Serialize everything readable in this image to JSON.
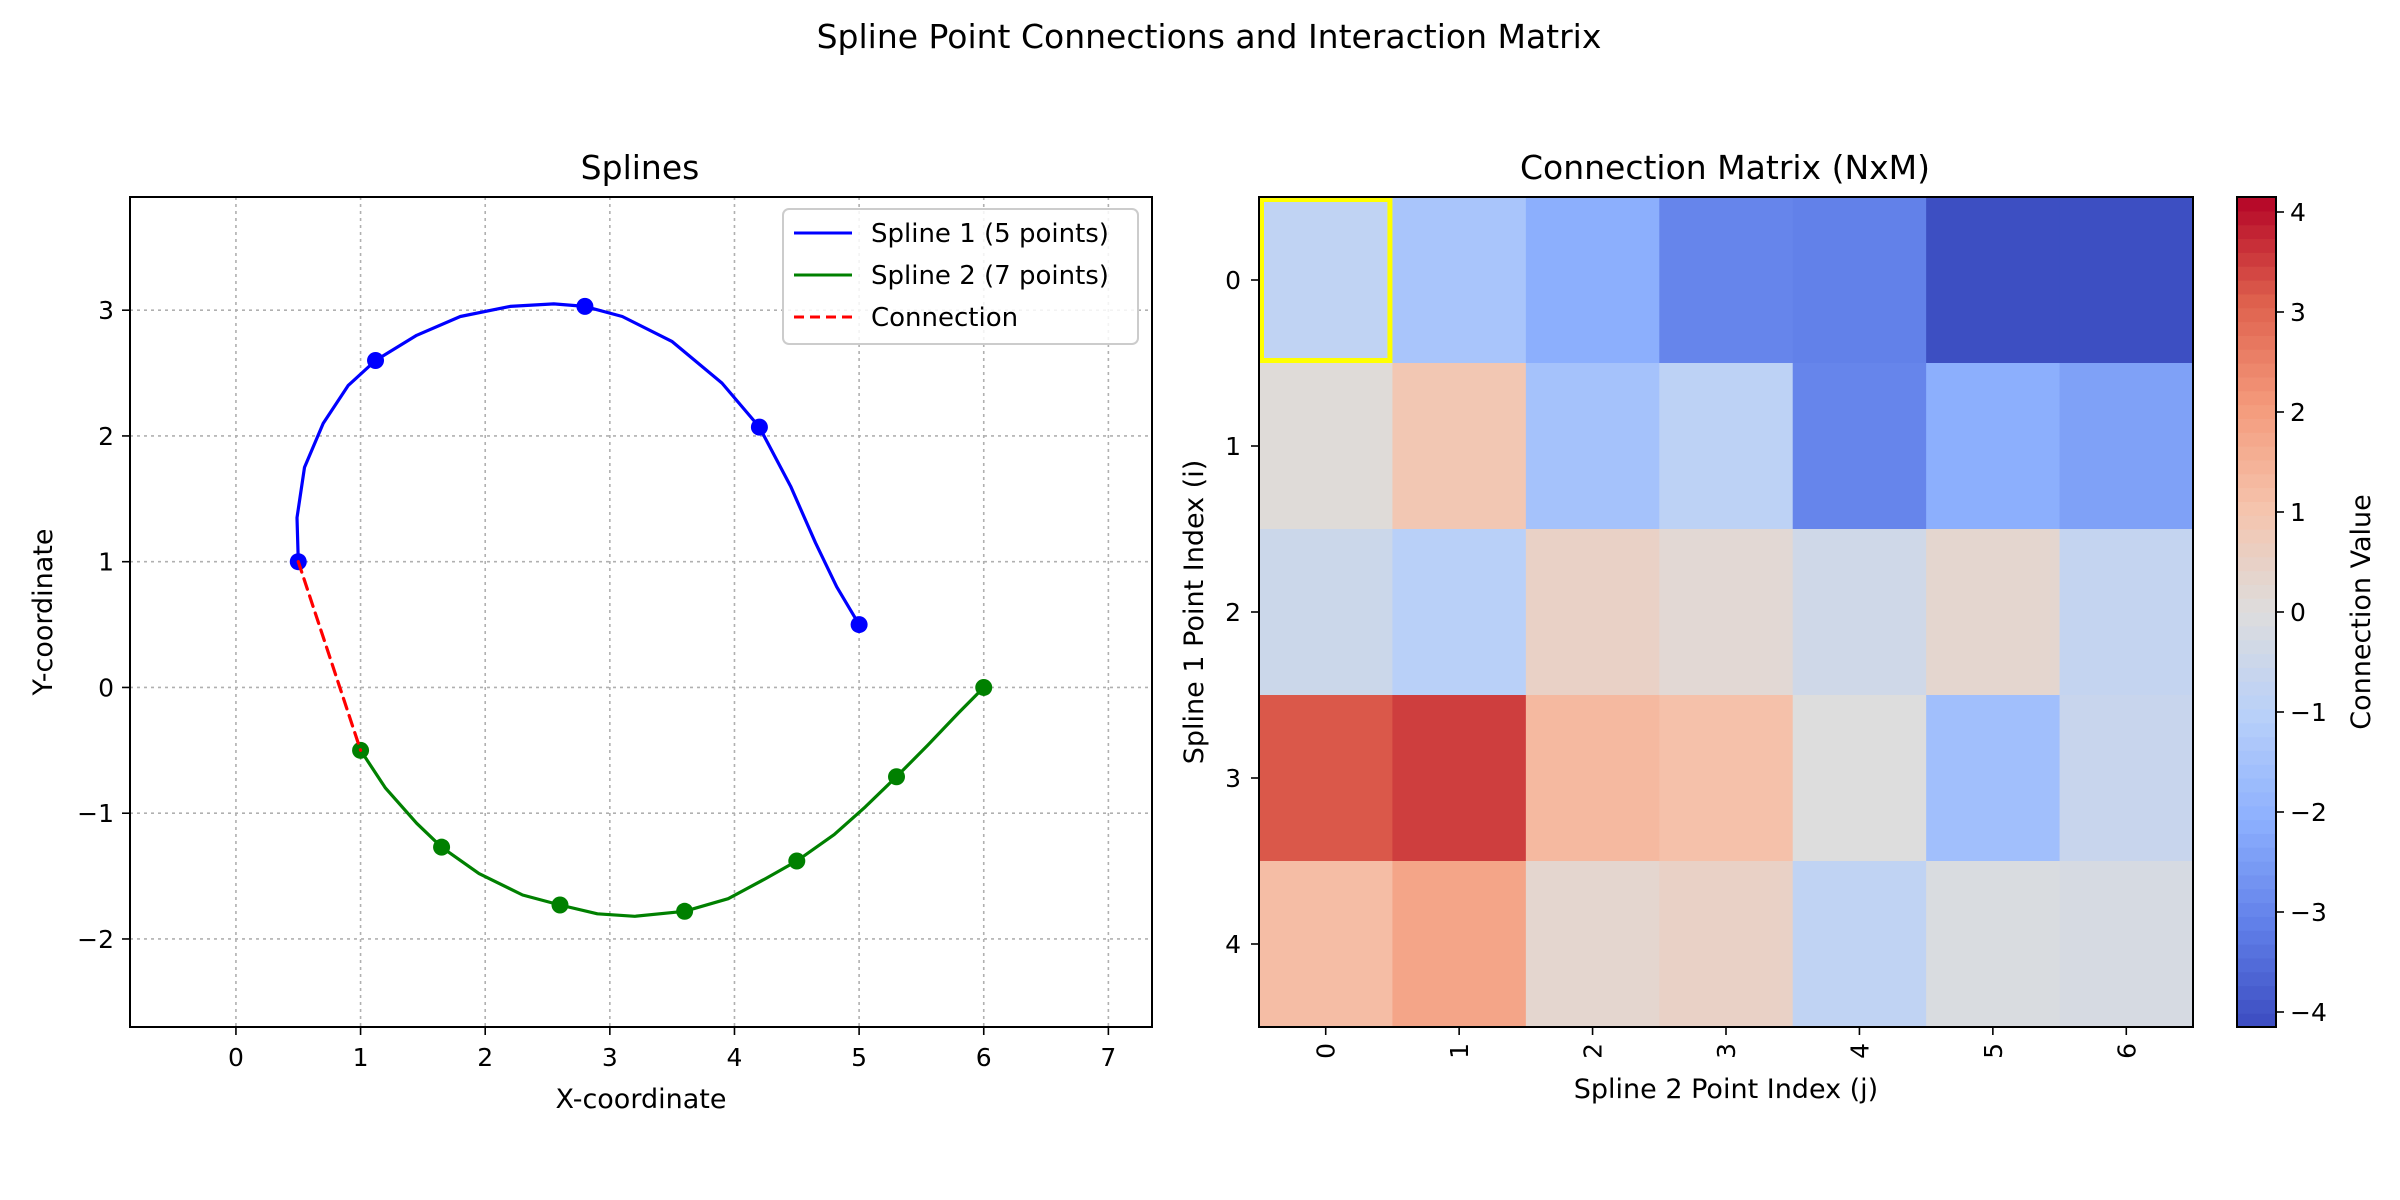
{
  "figure": {
    "title": "Spline Point Connections and Interaction Matrix"
  },
  "chart_data": [
    {
      "type": "line",
      "title": "Splines",
      "xlabel": "X-coordinate",
      "ylabel": "Y-coordinate",
      "xlim": [
        -0.85,
        7.35
      ],
      "ylim": [
        -2.7,
        3.9
      ],
      "xticks": [
        0,
        1,
        2,
        3,
        4,
        5,
        6,
        7
      ],
      "yticks": [
        -2,
        -1,
        0,
        1,
        2,
        3
      ],
      "grid": true,
      "legend_position": "top-right",
      "series": [
        {
          "name": "Spline 1 (5 points)",
          "color": "#0000ff",
          "points": [
            [
              0.5,
              1.0
            ],
            [
              1.12,
              2.6
            ],
            [
              2.8,
              3.03
            ],
            [
              4.2,
              2.07
            ],
            [
              5.0,
              0.5
            ]
          ],
          "curve": [
            [
              0.5,
              1.0
            ],
            [
              0.49,
              1.35
            ],
            [
              0.55,
              1.75
            ],
            [
              0.7,
              2.1
            ],
            [
              0.9,
              2.4
            ],
            [
              1.12,
              2.6
            ],
            [
              1.45,
              2.8
            ],
            [
              1.8,
              2.95
            ],
            [
              2.2,
              3.03
            ],
            [
              2.55,
              3.05
            ],
            [
              2.8,
              3.03
            ],
            [
              3.1,
              2.95
            ],
            [
              3.5,
              2.75
            ],
            [
              3.9,
              2.42
            ],
            [
              4.2,
              2.07
            ],
            [
              4.45,
              1.6
            ],
            [
              4.65,
              1.15
            ],
            [
              4.82,
              0.8
            ],
            [
              5.0,
              0.5
            ]
          ]
        },
        {
          "name": "Spline 2 (7 points)",
          "color": "#008000",
          "points": [
            [
              1.0,
              -0.5
            ],
            [
              1.65,
              -1.27
            ],
            [
              2.6,
              -1.73
            ],
            [
              3.6,
              -1.78
            ],
            [
              4.5,
              -1.38
            ],
            [
              5.3,
              -0.71
            ],
            [
              6.0,
              0.0
            ]
          ],
          "curve": [
            [
              1.0,
              -0.5
            ],
            [
              1.2,
              -0.8
            ],
            [
              1.45,
              -1.08
            ],
            [
              1.65,
              -1.27
            ],
            [
              1.95,
              -1.48
            ],
            [
              2.3,
              -1.65
            ],
            [
              2.6,
              -1.73
            ],
            [
              2.9,
              -1.8
            ],
            [
              3.2,
              -1.82
            ],
            [
              3.6,
              -1.78
            ],
            [
              3.95,
              -1.68
            ],
            [
              4.25,
              -1.52
            ],
            [
              4.5,
              -1.38
            ],
            [
              4.8,
              -1.17
            ],
            [
              5.05,
              -0.95
            ],
            [
              5.3,
              -0.71
            ],
            [
              5.55,
              -0.46
            ],
            [
              5.8,
              -0.2
            ],
            [
              6.0,
              0.0
            ]
          ]
        },
        {
          "name": "Connection",
          "color": "#ff0000",
          "dashed": true,
          "points": [
            [
              0.5,
              1.0
            ],
            [
              1.0,
              -0.5
            ]
          ]
        }
      ]
    },
    {
      "type": "heatmap",
      "title": "Connection Matrix (NxM)",
      "xlabel": "Spline 2 Point Index (j)",
      "ylabel": "Spline 1 Point Index (i)",
      "x_categories": [
        "0",
        "1",
        "2",
        "3",
        "4",
        "5",
        "6"
      ],
      "y_categories": [
        "0",
        "1",
        "2",
        "3",
        "4"
      ],
      "values": [
        [
          -0.8,
          -1.4,
          -2.1,
          -3.0,
          -3.1,
          -4.1,
          -4.1
        ],
        [
          0.1,
          0.9,
          -1.5,
          -0.9,
          -3.0,
          -2.1,
          -2.4
        ],
        [
          -0.5,
          -1.0,
          0.5,
          0.2,
          -0.4,
          0.3,
          -0.7
        ],
        [
          3.2,
          3.5,
          1.3,
          1.1,
          0.0,
          -1.6,
          -0.6
        ],
        [
          1.2,
          1.8,
          0.3,
          0.5,
          -0.8,
          -0.1,
          -0.2
        ]
      ],
      "highlight_cell": [
        0,
        0
      ],
      "highlight_color": "#ffff00",
      "colormap": "coolwarm",
      "colorbar": {
        "label": "Connection Value",
        "range": [
          -4.15,
          4.15
        ],
        "ticks": [
          -4,
          -3,
          -2,
          -1,
          0,
          1,
          2,
          3,
          4
        ]
      }
    }
  ]
}
